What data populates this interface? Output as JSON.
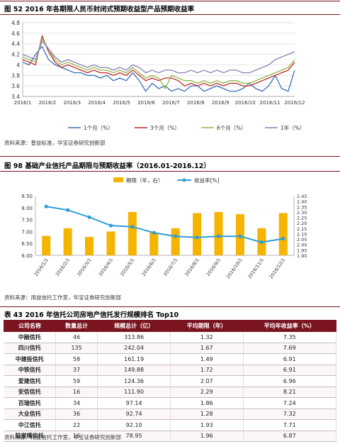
{
  "figure1": {
    "title": "图 52  2016 年各期限人民币封闭式预期收益型产品预期收益率",
    "source": "资料来源：普益标准，华宝证券研究创新部",
    "chart_data": {
      "type": "line",
      "x_ticks": [
        "2016/1",
        "2016/2",
        "2016/3",
        "2016/4",
        "2016/5",
        "2016/6",
        "2016/7",
        "2016/8",
        "2016/9",
        "2016/10",
        "2016/11",
        "2016/12"
      ],
      "y_ticks": [
        "4.8",
        "4.6",
        "4.4",
        "4.2",
        "4",
        "3.8",
        "3.6",
        "3.4"
      ],
      "ylim": [
        3.4,
        4.8
      ],
      "grid": true,
      "legend_position": "bottom",
      "series": [
        {
          "name": "1个月（%）",
          "color": "#3a6fb5",
          "values": [
            4.05,
            4.0,
            4.2,
            4.35,
            4.1,
            4.0,
            3.95,
            3.9,
            3.85,
            3.85,
            3.8,
            3.8,
            3.75,
            3.8,
            3.7,
            3.75,
            3.7,
            3.85,
            3.7,
            3.5,
            3.65,
            3.55,
            3.6,
            3.5,
            3.55,
            3.5,
            3.6,
            3.6,
            3.5,
            3.55,
            3.6,
            3.55,
            3.5,
            3.5,
            3.55,
            3.65,
            3.55,
            3.5,
            3.6,
            3.8,
            3.55,
            3.5,
            3.9
          ]
        },
        {
          "name": "3个月（%）",
          "color": "#c0292b",
          "values": [
            4.1,
            4.05,
            4.0,
            4.55,
            4.25,
            4.05,
            3.95,
            4.0,
            3.95,
            3.9,
            3.85,
            3.9,
            3.85,
            3.85,
            3.8,
            3.85,
            3.8,
            3.9,
            3.8,
            3.7,
            3.75,
            3.7,
            3.75,
            3.75,
            3.7,
            3.6,
            3.65,
            3.6,
            3.65,
            3.6,
            3.65,
            3.6,
            3.65,
            3.65,
            3.6,
            3.6,
            3.65,
            3.7,
            3.75,
            3.8,
            3.85,
            3.9,
            4.05
          ]
        },
        {
          "name": "6个月（%）",
          "color": "#8fb743",
          "values": [
            4.15,
            4.1,
            4.05,
            4.5,
            4.3,
            4.1,
            4.0,
            4.05,
            4.0,
            3.95,
            3.9,
            3.95,
            3.9,
            3.9,
            3.85,
            3.9,
            3.85,
            3.95,
            3.85,
            3.75,
            3.8,
            3.75,
            3.55,
            3.8,
            3.75,
            3.7,
            3.7,
            3.65,
            3.7,
            3.65,
            3.7,
            3.65,
            3.7,
            3.7,
            3.65,
            3.65,
            3.7,
            3.75,
            3.8,
            3.85,
            3.9,
            3.95,
            4.1
          ]
        },
        {
          "name": "1年（%）",
          "color": "#8a7fb8",
          "values": [
            4.2,
            4.15,
            4.1,
            4.45,
            4.3,
            4.15,
            4.05,
            4.1,
            4.05,
            4.0,
            3.95,
            4.0,
            3.95,
            3.95,
            3.9,
            3.95,
            3.9,
            4.0,
            3.95,
            3.85,
            3.9,
            3.85,
            3.9,
            3.9,
            3.85,
            3.85,
            3.9,
            3.85,
            3.9,
            3.85,
            3.9,
            3.85,
            3.9,
            3.9,
            3.85,
            3.85,
            3.9,
            3.95,
            4.0,
            4.1,
            4.15,
            4.2,
            4.25
          ]
        }
      ]
    }
  },
  "figure2": {
    "title": "图 98  基础产业信托产品期限与预期收益率（2016.01-2016.12）",
    "source": "资料来源：用益信托工作室，华宝证券研究创新部",
    "chart_data": {
      "type": "bar",
      "categories": [
        "2016/1/1",
        "2016/2/1",
        "2016/3/1",
        "2016/4/1",
        "2016/5/1",
        "2016/6/1",
        "2016/7/1",
        "2016/8/1",
        "2016/9/1",
        "2016/10/1",
        "2016/11/1",
        "2016/12/1"
      ],
      "left_ticks": [
        "8.50",
        "8.00",
        "7.50",
        "7.00",
        "6.50",
        "6.00"
      ],
      "right_ticks": [
        "2.45",
        "2.40",
        "2.35",
        "2.30",
        "2.25",
        "2.20",
        "2.15",
        "2.10",
        "2.05",
        "2.00",
        "1.95",
        "1.90"
      ],
      "ylim_left": [
        6.0,
        8.5
      ],
      "ylim_right": [
        1.9,
        2.45
      ],
      "legend_position": "top",
      "series": [
        {
          "name": "期限（年，右）",
          "type": "bar",
          "color": "#f5b400",
          "values": [
            2.08,
            2.15,
            2.07,
            2.12,
            2.3,
            2.11,
            2.15,
            2.29,
            2.3,
            2.28,
            2.15,
            2.29
          ]
        },
        {
          "name": "收益率[%]",
          "type": "line",
          "color": "#2f9ed8",
          "values": [
            8.05,
            7.9,
            7.6,
            7.25,
            7.2,
            6.95,
            6.8,
            6.75,
            6.8,
            6.8,
            6.55,
            6.7
          ]
        }
      ]
    }
  },
  "table": {
    "title": "表 43  2016 年信托公司房地产信托发行规模排名 Top10",
    "headers": [
      "公司名称",
      "数量总计",
      "规模总计（亿）",
      "平均期限（年）",
      "平均年收益率（%）"
    ],
    "rows": [
      [
        "中融信托",
        "46",
        "313.86",
        "1.32",
        "7.35"
      ],
      [
        "四川信托",
        "135",
        "242.04",
        "1.67",
        "7.69"
      ],
      [
        "中建投信托",
        "58",
        "161.19",
        "1.49",
        "6.91"
      ],
      [
        "中铁信托",
        "37",
        "149.88",
        "1.72",
        "6.91"
      ],
      [
        "爱建信托",
        "59",
        "124.36",
        "2.07",
        "6.96"
      ],
      [
        "安信信托",
        "16",
        "111.90",
        "2.29",
        "8.21"
      ],
      [
        "百瑞信托",
        "34",
        "97.14",
        "1.86",
        "7.24"
      ],
      [
        "大业信托",
        "36",
        "92.74",
        "1.28",
        "7.32"
      ],
      [
        "中江信托",
        "22",
        "92.10",
        "1.93",
        "7.71"
      ],
      [
        "陆家嘴信托",
        "16",
        "78.95",
        "1.96",
        "6.87"
      ]
    ],
    "source": "资料来源：用益信托工作室，华宝证券研究创新部"
  }
}
